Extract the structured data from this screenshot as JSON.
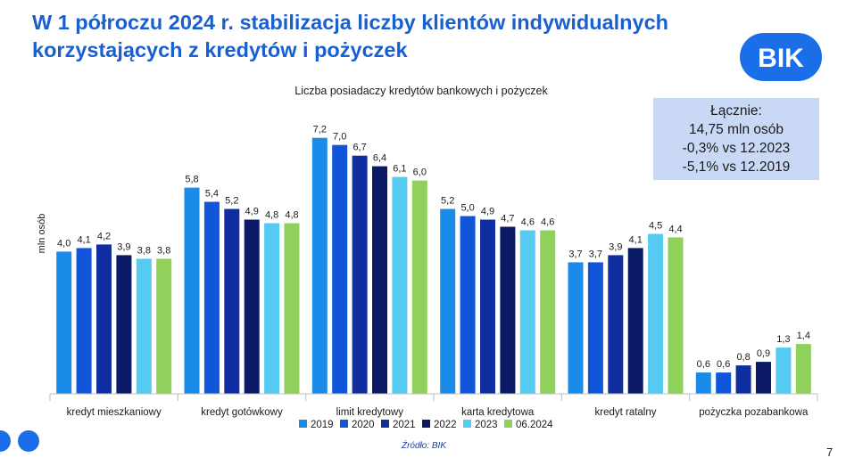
{
  "title": "W 1 półroczu 2024 r. stabilizacja liczby klientów indywidualnych korzystających z kredytów i pożyczek",
  "logo_text": "BIK",
  "summary": {
    "line1": "Łącznie:",
    "line2": "14,75 mln osób",
    "line3": "-0,3% vs 12.2023",
    "line4": "-5,1% vs 12.2019"
  },
  "source": "Źródło: BIK",
  "page_number": "7",
  "colors": {
    "title": "#1a5fd0",
    "logo": "#1a6fe8",
    "summary_bg": "#c9d9f5"
  },
  "chart_data": {
    "type": "bar",
    "title": "Liczba posiadaczy kredytów bankowych i pożyczek",
    "ylabel": "mln osób",
    "xlabel": "",
    "ylim": [
      0,
      8
    ],
    "grid": false,
    "legend_position": "bottom",
    "categories": [
      "kredyt mieszkaniowy",
      "kredyt gotówkowy",
      "limit kredytowy",
      "karta kredytowa",
      "kredyt ratalny",
      "pożyczka pozabankowa"
    ],
    "series": [
      {
        "name": "2019",
        "color": "#1a8be8",
        "values": [
          4.0,
          5.8,
          7.2,
          5.2,
          3.7,
          0.6
        ],
        "labels": [
          "4,0",
          "5,8",
          "7,2",
          "5,2",
          "3,7",
          "0,6"
        ]
      },
      {
        "name": "2020",
        "color": "#1155d8",
        "values": [
          4.1,
          5.4,
          7.0,
          5.0,
          3.7,
          0.6
        ],
        "labels": [
          "4,1",
          "5,4",
          "7,0",
          "5,0",
          "3,7",
          "0,6"
        ]
      },
      {
        "name": "2021",
        "color": "#102ea0",
        "values": [
          4.2,
          5.2,
          6.7,
          4.9,
          3.9,
          0.8
        ],
        "labels": [
          "4,2",
          "5,2",
          "6,7",
          "4,9",
          "3,9",
          "0,8"
        ]
      },
      {
        "name": "2022",
        "color": "#0a1a66",
        "values": [
          3.9,
          4.9,
          6.4,
          4.7,
          4.1,
          0.9
        ],
        "labels": [
          "3,9",
          "4,9",
          "6,4",
          "4,7",
          "4,1",
          "0,9"
        ]
      },
      {
        "name": "2023",
        "color": "#55cbf2",
        "values": [
          3.8,
          4.8,
          6.1,
          4.6,
          4.5,
          1.3
        ],
        "labels": [
          "3,8",
          "4,8",
          "6,1",
          "4,6",
          "4,5",
          "1,3"
        ]
      },
      {
        "name": "06.2024",
        "color": "#8fd15a",
        "values": [
          3.8,
          4.8,
          6.0,
          4.6,
          4.4,
          1.4
        ],
        "labels": [
          "3,8",
          "4,8",
          "6,0",
          "4,6",
          "4,4",
          "1,4"
        ]
      }
    ]
  }
}
